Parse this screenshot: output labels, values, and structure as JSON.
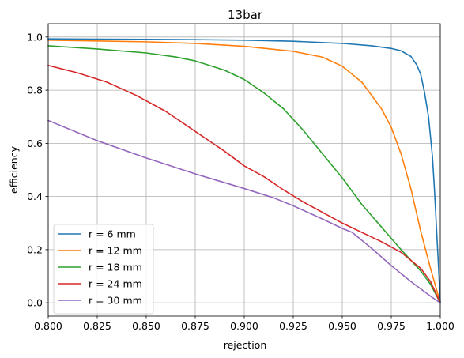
{
  "chart_data": {
    "type": "line",
    "title": "13bar",
    "xlabel": "rejection",
    "ylabel": "efficiency",
    "xlim": [
      0.8,
      1.0
    ],
    "ylim": [
      -0.05,
      1.05
    ],
    "xticks": [
      0.8,
      0.825,
      0.85,
      0.875,
      0.9,
      0.925,
      0.95,
      0.975,
      1.0
    ],
    "xtick_labels": [
      "0.800",
      "0.825",
      "0.850",
      "0.875",
      "0.900",
      "0.925",
      "0.950",
      "0.975",
      "1.000"
    ],
    "yticks": [
      0.0,
      0.2,
      0.4,
      0.6,
      0.8,
      1.0
    ],
    "ytick_labels": [
      "0.0",
      "0.2",
      "0.4",
      "0.6",
      "0.8",
      "1.0"
    ],
    "grid": true,
    "legend_position": "lower-left",
    "series": [
      {
        "name": "r = 6 mm",
        "color": "#1f77b4",
        "points": [
          [
            0.8,
            0.993
          ],
          [
            0.825,
            0.992
          ],
          [
            0.85,
            0.991
          ],
          [
            0.875,
            0.99
          ],
          [
            0.9,
            0.988
          ],
          [
            0.925,
            0.984
          ],
          [
            0.95,
            0.976
          ],
          [
            0.965,
            0.967
          ],
          [
            0.975,
            0.957
          ],
          [
            0.98,
            0.948
          ],
          [
            0.985,
            0.927
          ],
          [
            0.988,
            0.895
          ],
          [
            0.99,
            0.86
          ],
          [
            0.992,
            0.79
          ],
          [
            0.994,
            0.7
          ],
          [
            0.996,
            0.55
          ],
          [
            0.997,
            0.43
          ],
          [
            0.998,
            0.29
          ],
          [
            0.999,
            0.15
          ],
          [
            1.0,
            0.0
          ]
        ]
      },
      {
        "name": "r = 12 mm",
        "color": "#ff7f0e",
        "points": [
          [
            0.8,
            0.988
          ],
          [
            0.825,
            0.985
          ],
          [
            0.85,
            0.982
          ],
          [
            0.875,
            0.976
          ],
          [
            0.9,
            0.965
          ],
          [
            0.925,
            0.946
          ],
          [
            0.94,
            0.924
          ],
          [
            0.95,
            0.89
          ],
          [
            0.96,
            0.83
          ],
          [
            0.97,
            0.73
          ],
          [
            0.975,
            0.66
          ],
          [
            0.98,
            0.56
          ],
          [
            0.985,
            0.43
          ],
          [
            0.99,
            0.27
          ],
          [
            0.995,
            0.13
          ],
          [
            1.0,
            0.0
          ]
        ]
      },
      {
        "name": "r = 18 mm",
        "color": "#2ca02c",
        "points": [
          [
            0.8,
            0.967
          ],
          [
            0.825,
            0.955
          ],
          [
            0.85,
            0.94
          ],
          [
            0.865,
            0.925
          ],
          [
            0.875,
            0.91
          ],
          [
            0.89,
            0.875
          ],
          [
            0.9,
            0.84
          ],
          [
            0.91,
            0.79
          ],
          [
            0.92,
            0.73
          ],
          [
            0.93,
            0.65
          ],
          [
            0.94,
            0.56
          ],
          [
            0.95,
            0.47
          ],
          [
            0.96,
            0.37
          ],
          [
            0.97,
            0.285
          ],
          [
            0.98,
            0.2
          ],
          [
            0.99,
            0.12
          ],
          [
            0.995,
            0.07
          ],
          [
            1.0,
            0.0
          ]
        ]
      },
      {
        "name": "r = 24 mm",
        "color": "#d62728",
        "points": [
          [
            0.8,
            0.893
          ],
          [
            0.815,
            0.865
          ],
          [
            0.83,
            0.83
          ],
          [
            0.845,
            0.78
          ],
          [
            0.86,
            0.72
          ],
          [
            0.87,
            0.67
          ],
          [
            0.88,
            0.62
          ],
          [
            0.89,
            0.57
          ],
          [
            0.9,
            0.515
          ],
          [
            0.91,
            0.475
          ],
          [
            0.92,
            0.425
          ],
          [
            0.93,
            0.38
          ],
          [
            0.94,
            0.34
          ],
          [
            0.95,
            0.3
          ],
          [
            0.96,
            0.265
          ],
          [
            0.97,
            0.23
          ],
          [
            0.98,
            0.19
          ],
          [
            0.99,
            0.13
          ],
          [
            0.995,
            0.08
          ],
          [
            1.0,
            0.0
          ]
        ]
      },
      {
        "name": "r = 30 mm",
        "color": "#9467bd",
        "points": [
          [
            0.8,
            0.686
          ],
          [
            0.825,
            0.61
          ],
          [
            0.85,
            0.545
          ],
          [
            0.875,
            0.485
          ],
          [
            0.9,
            0.43
          ],
          [
            0.915,
            0.395
          ],
          [
            0.925,
            0.365
          ],
          [
            0.94,
            0.315
          ],
          [
            0.95,
            0.28
          ],
          [
            0.955,
            0.265
          ],
          [
            0.965,
            0.205
          ],
          [
            0.975,
            0.14
          ],
          [
            0.985,
            0.08
          ],
          [
            0.995,
            0.025
          ],
          [
            1.0,
            0.0
          ]
        ]
      }
    ]
  }
}
